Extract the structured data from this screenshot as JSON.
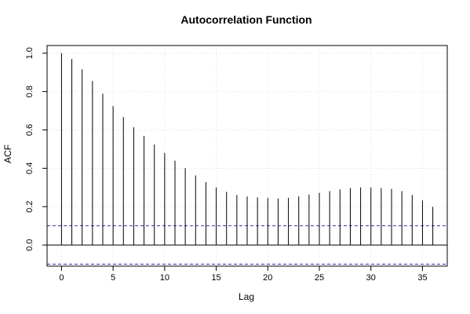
{
  "chart_data": {
    "type": "bar",
    "title": "Autocorrelation Function",
    "xlabel": "Lag",
    "ylabel": "ACF",
    "xlim": [
      -1.4,
      37.4
    ],
    "ylim": [
      -0.11,
      1.04
    ],
    "x_ticks": [
      0,
      5,
      10,
      15,
      20,
      25,
      30,
      35
    ],
    "y_ticks": [
      0.0,
      0.2,
      0.4,
      0.6,
      0.8,
      1.0
    ],
    "x_tick_labels": [
      "0",
      "5",
      "10",
      "15",
      "20",
      "25",
      "30",
      "35"
    ],
    "y_tick_labels": [
      "0.0",
      "0.2",
      "0.4",
      "0.6",
      "0.8",
      "1.0"
    ],
    "grid": true,
    "lags": [
      0,
      1,
      2,
      3,
      4,
      5,
      6,
      7,
      8,
      9,
      10,
      11,
      12,
      13,
      14,
      15,
      16,
      17,
      18,
      19,
      20,
      21,
      22,
      23,
      24,
      25,
      26,
      27,
      28,
      29,
      30,
      31,
      32,
      33,
      34,
      35,
      36
    ],
    "acf": [
      1.0,
      0.97,
      0.916,
      0.855,
      0.789,
      0.724,
      0.667,
      0.614,
      0.569,
      0.524,
      0.48,
      0.44,
      0.401,
      0.363,
      0.328,
      0.3,
      0.277,
      0.261,
      0.253,
      0.249,
      0.245,
      0.243,
      0.246,
      0.254,
      0.263,
      0.272,
      0.281,
      0.29,
      0.297,
      0.3,
      0.3,
      0.297,
      0.293,
      0.281,
      0.261,
      0.232,
      0.199
    ],
    "confidence_bound": 0.1,
    "colors": {
      "bars": "#000000",
      "zero_line": "#000000",
      "confidence": "#3333aa",
      "grid": "#dddddd"
    }
  }
}
